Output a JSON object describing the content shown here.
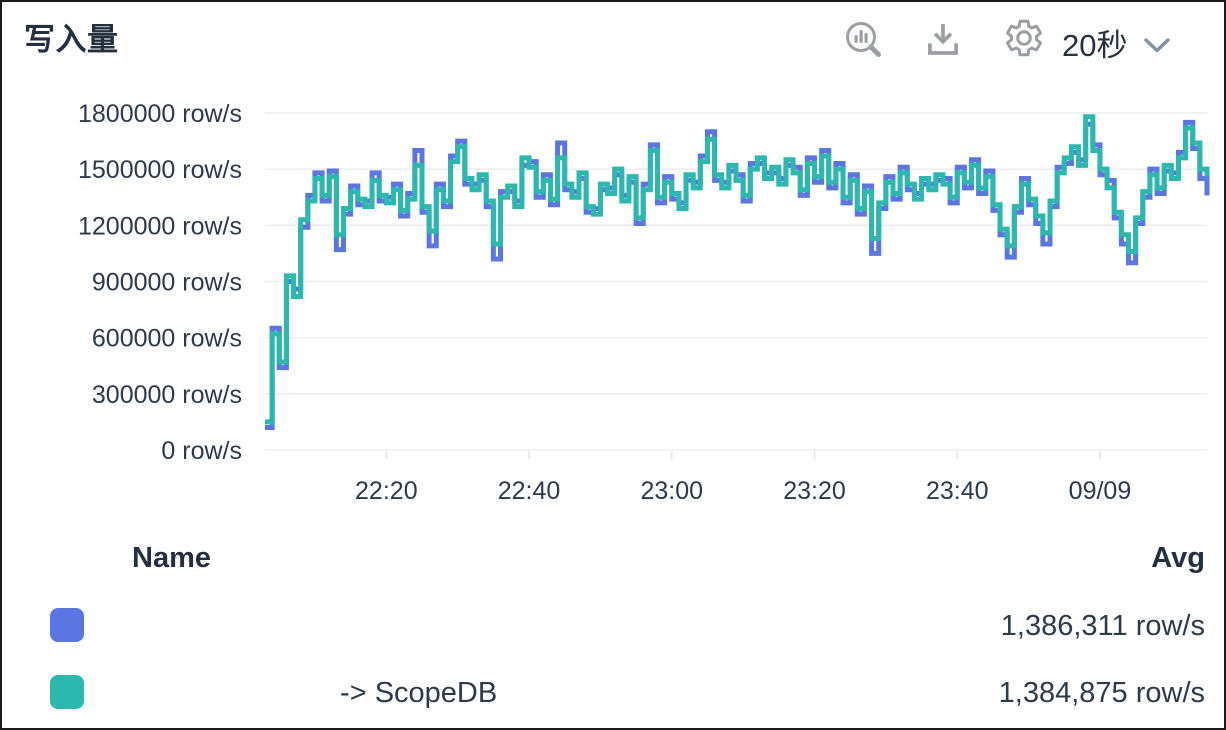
{
  "header": {
    "title": "写入量",
    "interval": "20秒",
    "icons": {
      "query": "magnifier-bar-chart",
      "download": "download-tray-arrow",
      "settings": "gear",
      "interval_chevron": "chevron-down"
    }
  },
  "colors": {
    "series_blue": "#5b76e0",
    "series_teal": "#2cb8ae",
    "text_dark": "#2d3a49",
    "icon_gray": "#9b9fa3",
    "gridline": "#eeeeee",
    "tick": "#e4e4e4"
  },
  "chart_data": {
    "type": "line",
    "line_style": "step",
    "title": "写入量",
    "y_unit": "row/s",
    "interval": "20秒",
    "grid": "horizontal",
    "legend_position": "bottom-table",
    "ylim": [
      0,
      1800000
    ],
    "x_axis_origin": "22:00",
    "x_start_minute": 3,
    "x_end_minute": 135,
    "y_ticks": [
      {
        "value": 1800000,
        "label": "1800000 row/s"
      },
      {
        "value": 1500000,
        "label": "1500000 row/s"
      },
      {
        "value": 1200000,
        "label": "1200000 row/s"
      },
      {
        "value": 900000,
        "label": "900000 row/s"
      },
      {
        "value": 600000,
        "label": "600000 row/s"
      },
      {
        "value": 300000,
        "label": "300000 row/s"
      },
      {
        "value": 0,
        "label": "0 row/s"
      }
    ],
    "x_ticks": [
      {
        "minute": 20,
        "label": "22:20"
      },
      {
        "minute": 40,
        "label": "22:40"
      },
      {
        "minute": 60,
        "label": "23:00"
      },
      {
        "minute": 80,
        "label": "23:20"
      },
      {
        "minute": 100,
        "label": "23:40"
      },
      {
        "minute": 120,
        "label": "09/09"
      }
    ],
    "series": [
      {
        "name": "",
        "color": "#5b76e0",
        "avg": "1,386,311 row/s",
        "values": [
          120000,
          650000,
          440000,
          900000,
          860000,
          1190000,
          1360000,
          1480000,
          1330000,
          1490000,
          1070000,
          1260000,
          1410000,
          1310000,
          1330000,
          1480000,
          1330000,
          1350000,
          1420000,
          1250000,
          1370000,
          1600000,
          1270000,
          1090000,
          1420000,
          1300000,
          1570000,
          1650000,
          1420000,
          1420000,
          1440000,
          1300000,
          1020000,
          1380000,
          1380000,
          1330000,
          1520000,
          1540000,
          1350000,
          1470000,
          1310000,
          1640000,
          1390000,
          1380000,
          1450000,
          1270000,
          1290000,
          1390000,
          1400000,
          1470000,
          1360000,
          1430000,
          1210000,
          1420000,
          1630000,
          1320000,
          1460000,
          1340000,
          1320000,
          1440000,
          1430000,
          1570000,
          1700000,
          1440000,
          1430000,
          1490000,
          1470000,
          1330000,
          1530000,
          1530000,
          1480000,
          1480000,
          1450000,
          1520000,
          1510000,
          1360000,
          1560000,
          1430000,
          1600000,
          1400000,
          1530000,
          1320000,
          1470000,
          1260000,
          1410000,
          1050000,
          1290000,
          1460000,
          1340000,
          1510000,
          1390000,
          1370000,
          1420000,
          1420000,
          1440000,
          1450000,
          1320000,
          1510000,
          1400000,
          1550000,
          1370000,
          1490000,
          1280000,
          1150000,
          1030000,
          1270000,
          1450000,
          1310000,
          1210000,
          1100000,
          1300000,
          1510000,
          1530000,
          1590000,
          1550000,
          1740000,
          1630000,
          1470000,
          1440000,
          1240000,
          1100000,
          1000000,
          1210000,
          1350000,
          1500000,
          1370000,
          1490000,
          1480000,
          1590000,
          1750000,
          1610000,
          1450000,
          1360000
        ]
      },
      {
        "name": " -> ScopeDB",
        "color": "#2cb8ae",
        "avg": "1,384,875 row/s",
        "values": [
          150000,
          620000,
          470000,
          930000,
          820000,
          1230000,
          1330000,
          1450000,
          1360000,
          1460000,
          1150000,
          1290000,
          1380000,
          1340000,
          1300000,
          1440000,
          1360000,
          1320000,
          1390000,
          1280000,
          1340000,
          1520000,
          1300000,
          1170000,
          1390000,
          1330000,
          1540000,
          1620000,
          1450000,
          1390000,
          1470000,
          1330000,
          1100000,
          1350000,
          1410000,
          1300000,
          1560000,
          1510000,
          1380000,
          1440000,
          1340000,
          1560000,
          1420000,
          1350000,
          1480000,
          1300000,
          1260000,
          1420000,
          1370000,
          1500000,
          1330000,
          1460000,
          1240000,
          1390000,
          1600000,
          1350000,
          1430000,
          1370000,
          1290000,
          1470000,
          1400000,
          1540000,
          1660000,
          1470000,
          1400000,
          1520000,
          1440000,
          1360000,
          1500000,
          1560000,
          1450000,
          1510000,
          1420000,
          1550000,
          1480000,
          1390000,
          1530000,
          1460000,
          1570000,
          1430000,
          1500000,
          1350000,
          1440000,
          1290000,
          1380000,
          1130000,
          1320000,
          1430000,
          1370000,
          1480000,
          1420000,
          1340000,
          1450000,
          1390000,
          1470000,
          1420000,
          1350000,
          1480000,
          1430000,
          1520000,
          1400000,
          1460000,
          1310000,
          1180000,
          1090000,
          1300000,
          1420000,
          1340000,
          1250000,
          1160000,
          1330000,
          1480000,
          1560000,
          1620000,
          1520000,
          1780000,
          1600000,
          1500000,
          1400000,
          1270000,
          1150000,
          1060000,
          1240000,
          1380000,
          1470000,
          1400000,
          1520000,
          1450000,
          1560000,
          1720000,
          1640000,
          1500000,
          1460000
        ]
      }
    ]
  },
  "legend": {
    "name_header": "Name",
    "avg_header": "Avg",
    "rows": [
      {
        "name": "",
        "avg": "1,386,311 row/s"
      },
      {
        "name": " -> ScopeDB",
        "avg": "1,384,875 row/s"
      }
    ]
  }
}
